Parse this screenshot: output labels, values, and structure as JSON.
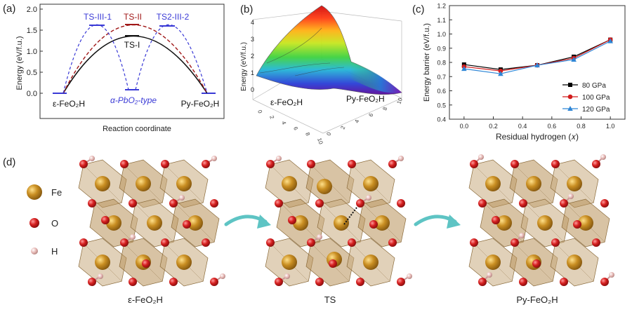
{
  "panel_a": {
    "tag": "(a)",
    "ylabel": "Energy (eV/f.u.)",
    "xlabel": "Reaction coordinate",
    "yticks": [
      "0.0",
      "0.5",
      "1.0",
      "1.5",
      "2.0"
    ],
    "labels": {
      "ts3_1": "TS-III-1",
      "ts2": "TS-II",
      "ts2_3_2": "TS2-III-2",
      "ts1": "TS-I",
      "alpha": "α-PbO₂-type",
      "left": "ε-FeO₂H",
      "right": "Py-FeO₂H"
    },
    "colors": {
      "black": "#111111",
      "red": "#a01818",
      "blue": "#3a3ad6"
    }
  },
  "panel_b": {
    "tag": "(b)",
    "zlabel": "Energy (eV/f.u.)",
    "zticks": [
      "0",
      "1",
      "2",
      "3",
      "4"
    ],
    "left_label": "ε-FeO₂H",
    "right_label": "Py-FeO₂H",
    "axis_ticks_left": [
      "10",
      "8",
      "6",
      "4",
      "2",
      "0"
    ],
    "axis_ticks_right": [
      "0",
      "2",
      "4",
      "6",
      "8",
      "10"
    ]
  },
  "panel_c": {
    "tag": "(c)",
    "ylabel": "Energy barrier (eV/f.u.)",
    "xlabel": "Residual hydrogen (𝑥)",
    "legend": [
      "80 GPa",
      "100 GPa",
      "120 GPa"
    ],
    "colors": [
      "#000000",
      "#d21c1c",
      "#2f86d6"
    ]
  },
  "chart_data": {
    "type": "line",
    "xlabel": "Residual hydrogen (𝑥)",
    "ylabel": "Energy barrier (eV/f.u.)",
    "x": [
      0.0,
      0.25,
      0.5,
      0.75,
      1.0
    ],
    "xticks": [
      "0.0",
      "0.2",
      "0.4",
      "0.6",
      "0.8",
      "1.0"
    ],
    "xlim": [
      -0.1,
      1.1
    ],
    "ylim": [
      0.4,
      1.2
    ],
    "yticks": [
      "0.4",
      "0.5",
      "0.6",
      "0.7",
      "0.8",
      "0.9",
      "1.0",
      "1.1",
      "1.2"
    ],
    "series": [
      {
        "name": "80 GPa",
        "values": [
          0.785,
          0.75,
          0.78,
          0.84,
          0.96
        ]
      },
      {
        "name": "100 GPa",
        "values": [
          0.77,
          0.74,
          0.78,
          0.83,
          0.96
        ]
      },
      {
        "name": "120 GPa",
        "values": [
          0.755,
          0.72,
          0.78,
          0.82,
          0.95
        ]
      }
    ],
    "legend_position": "bottom-right"
  },
  "panel_d": {
    "tag": "(d)",
    "legend": [
      {
        "label": "Fe",
        "color": "#b07a1c"
      },
      {
        "label": "O",
        "color": "#d62020"
      },
      {
        "label": "H",
        "color": "#e7b9b6"
      }
    ],
    "structures": [
      "ε-FeO₂H",
      "TS",
      "Py-FeO₂H"
    ],
    "arrow_color": "#5ec4c4"
  }
}
